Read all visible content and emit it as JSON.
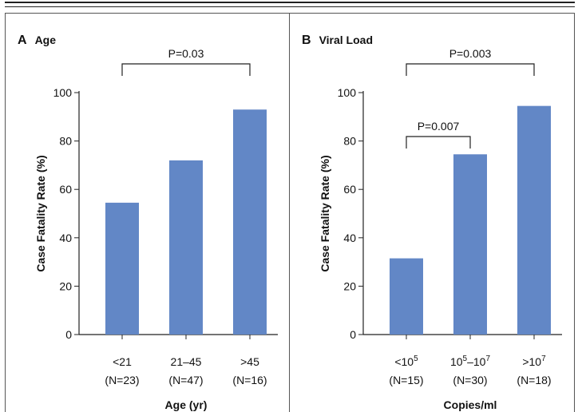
{
  "chart_data": [
    {
      "type": "bar",
      "panel_letter": "A",
      "title": "Age",
      "xlabel": "Age (yr)",
      "ylabel": "Case Fatality Rate (%)",
      "ylim": [
        0,
        100
      ],
      "yticks": [
        "0",
        "20",
        "40",
        "60",
        "80",
        "100"
      ],
      "categories": [
        {
          "label": "<21",
          "label_main": "<21",
          "label_sup": "",
          "label_tail": "",
          "n": "(N=23)"
        },
        {
          "label": "21–45",
          "label_main": "21–45",
          "label_sup": "",
          "label_tail": "",
          "n": "(N=47)"
        },
        {
          "label": ">45",
          "label_main": ">45",
          "label_sup": "",
          "label_tail": "",
          "n": "(N=16)"
        }
      ],
      "values": [
        54.5,
        72,
        93
      ],
      "bar_color": "#6287c6",
      "comparisons": [
        {
          "from": 0,
          "to": 2,
          "label": "P=0.03"
        }
      ]
    },
    {
      "type": "bar",
      "panel_letter": "B",
      "title": "Viral Load",
      "xlabel": "Copies/ml",
      "ylabel": "Case Fatality Rate (%)",
      "ylim": [
        0,
        100
      ],
      "yticks": [
        "0",
        "20",
        "40",
        "60",
        "80",
        "100"
      ],
      "categories": [
        {
          "label": "<10^5",
          "label_main": "<10",
          "label_sup": "5",
          "label_tail": "",
          "n": "(N=15)"
        },
        {
          "label": "10^5–10^7",
          "label_main": "10",
          "label_sup": "5",
          "label_tail": "–10",
          "label_sup2": "7",
          "n": "(N=30)"
        },
        {
          "label": ">10^7",
          "label_main": ">10",
          "label_sup": "7",
          "label_tail": "",
          "n": "(N=18)"
        }
      ],
      "values": [
        31.5,
        74.5,
        94.5
      ],
      "bar_color": "#6287c6",
      "comparisons": [
        {
          "from": 0,
          "to": 2,
          "label": "P=0.003"
        },
        {
          "from": 0,
          "to": 1,
          "label": "P=0.007"
        }
      ]
    }
  ]
}
